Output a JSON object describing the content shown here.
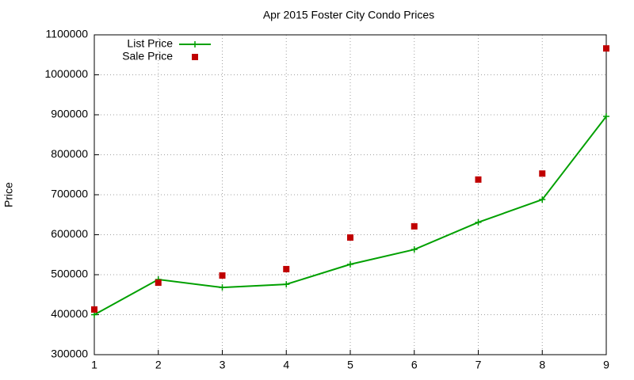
{
  "chart_data": {
    "type": "line",
    "title": "Apr 2015 Foster City Condo Prices",
    "y_label": "Price",
    "x": [
      1,
      2,
      3,
      4,
      5,
      6,
      7,
      8,
      9
    ],
    "series": [
      {
        "name": "List Price",
        "color": "#00a000",
        "style": "linespoints",
        "marker": "plus",
        "values": [
          400000,
          488000,
          468000,
          476000,
          526000,
          563000,
          631000,
          688000,
          896000
        ]
      },
      {
        "name": "Sale Price",
        "color": "#c00000",
        "style": "points",
        "marker": "square",
        "values": [
          413000,
          480000,
          498000,
          514000,
          593000,
          621000,
          738000,
          753000,
          1066000
        ]
      }
    ],
    "xlim": [
      1,
      9
    ],
    "xticks": [
      1,
      2,
      3,
      4,
      5,
      6,
      7,
      8,
      9
    ],
    "ylim": [
      300000,
      1100000
    ],
    "yticks": [
      300000,
      400000,
      500000,
      600000,
      700000,
      800000,
      900000,
      1000000,
      1100000
    ],
    "grid": true,
    "legend": "top-left"
  }
}
